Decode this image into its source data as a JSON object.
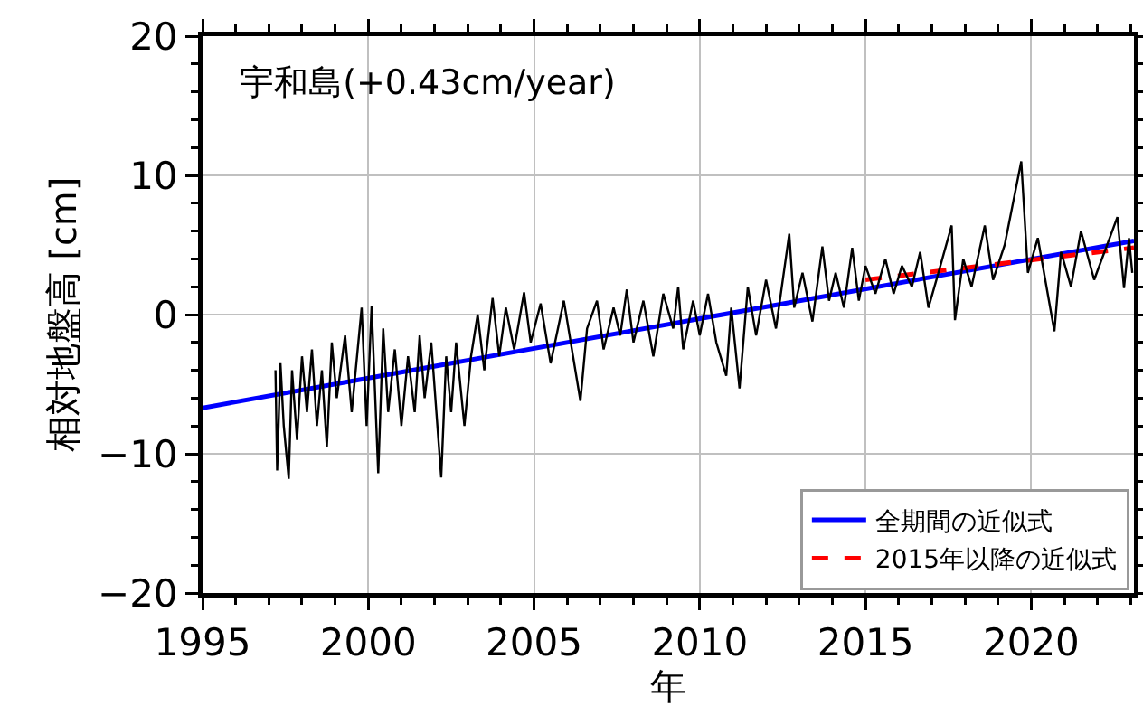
{
  "chart_data": {
    "type": "line",
    "title": "宇和島(+0.43cm/year)",
    "xlabel": "年",
    "ylabel": "相対地盤高 [cm]",
    "xlim": [
      1995,
      2023.1
    ],
    "xticks": [
      1995,
      2000,
      2005,
      2010,
      2015,
      2020
    ],
    "ylim": [
      -20,
      20
    ],
    "yticks": [
      -20,
      -10,
      0,
      10,
      20
    ],
    "grid": true,
    "legend": "bottom right",
    "marker": "none",
    "series": [
      {
        "color": "#000000",
        "line_style": "solid",
        "x": [
          1997.2,
          1997.25,
          1997.35,
          1997.45,
          1997.6,
          1997.7,
          1997.85,
          1998.0,
          1998.15,
          1998.3,
          1998.45,
          1998.6,
          1998.75,
          1998.9,
          1999.05,
          1999.3,
          1999.5,
          1999.8,
          1999.95,
          2000.1,
          2000.3,
          2000.45,
          2000.6,
          2000.8,
          2001.0,
          2001.2,
          2001.4,
          2001.55,
          2001.7,
          2001.9,
          2002.2,
          2002.35,
          2002.5,
          2002.65,
          2002.9,
          2003.1,
          2003.3,
          2003.5,
          2003.75,
          2003.95,
          2004.15,
          2004.4,
          2004.7,
          2004.9,
          2005.2,
          2005.5,
          2005.9,
          2006.4,
          2006.6,
          2006.9,
          2007.1,
          2007.4,
          2007.6,
          2007.8,
          2008.0,
          2008.3,
          2008.6,
          2008.9,
          2009.2,
          2009.35,
          2009.5,
          2009.8,
          2010.0,
          2010.25,
          2010.5,
          2010.8,
          2010.95,
          2011.2,
          2011.45,
          2011.7,
          2012.0,
          2012.3,
          2012.7,
          2012.85,
          2013.1,
          2013.4,
          2013.7,
          2013.9,
          2014.1,
          2014.35,
          2014.6,
          2014.8,
          2015.0,
          2015.3,
          2015.6,
          2015.85,
          2016.1,
          2016.4,
          2016.65,
          2016.9,
          2017.2,
          2017.6,
          2017.7,
          2017.95,
          2018.2,
          2018.6,
          2018.85,
          2019.2,
          2019.7,
          2019.9,
          2020.2,
          2020.7,
          2020.9,
          2021.2,
          2021.5,
          2021.9,
          2022.6,
          2022.8,
          2022.95,
          2023.05
        ],
        "values": [
          -4,
          -11.2,
          -3.5,
          -8,
          -11.8,
          -4,
          -9,
          -3,
          -7,
          -2.5,
          -8,
          -4,
          -9.5,
          -2,
          -6,
          -1.5,
          -7,
          0.5,
          -8,
          0.6,
          -11.4,
          -1,
          -7,
          -2.5,
          -8,
          -3,
          -7,
          -1.5,
          -6,
          -2,
          -11.7,
          -3,
          -7,
          -2,
          -8,
          -3,
          0,
          -4,
          1.2,
          -3,
          0.5,
          -2.5,
          1.6,
          -2,
          0.8,
          -3.5,
          1,
          -6.2,
          -1,
          1,
          -2.5,
          0.5,
          -1.5,
          1.8,
          -2,
          1,
          -3,
          1.5,
          -1,
          2,
          -2.5,
          1,
          -1.5,
          1.5,
          -2,
          -4.4,
          0.5,
          -5.3,
          2,
          -1.5,
          2.5,
          -1,
          5.8,
          0.5,
          3,
          -0.5,
          4.9,
          1,
          3,
          0.5,
          4.8,
          1,
          3.5,
          1.5,
          4,
          1.5,
          3.5,
          2,
          4.5,
          0.5,
          3,
          6.4,
          -0.4,
          4,
          2,
          6.4,
          2.5,
          5,
          11,
          3,
          5.5,
          -1.2,
          4.5,
          2,
          6,
          2.5,
          7,
          1.9,
          5.5,
          3
        ]
      },
      {
        "name": "全期間の近似式",
        "color": "#0000ff",
        "line_style": "solid",
        "x": [
          1995,
          2023.1
        ],
        "values": [
          -6.7,
          5.3
        ]
      },
      {
        "name": "2015年以降の近似式",
        "color": "#ff0000",
        "line_style": "dashed",
        "x": [
          2015,
          2023.1
        ],
        "values": [
          2.5,
          4.8
        ]
      }
    ]
  }
}
